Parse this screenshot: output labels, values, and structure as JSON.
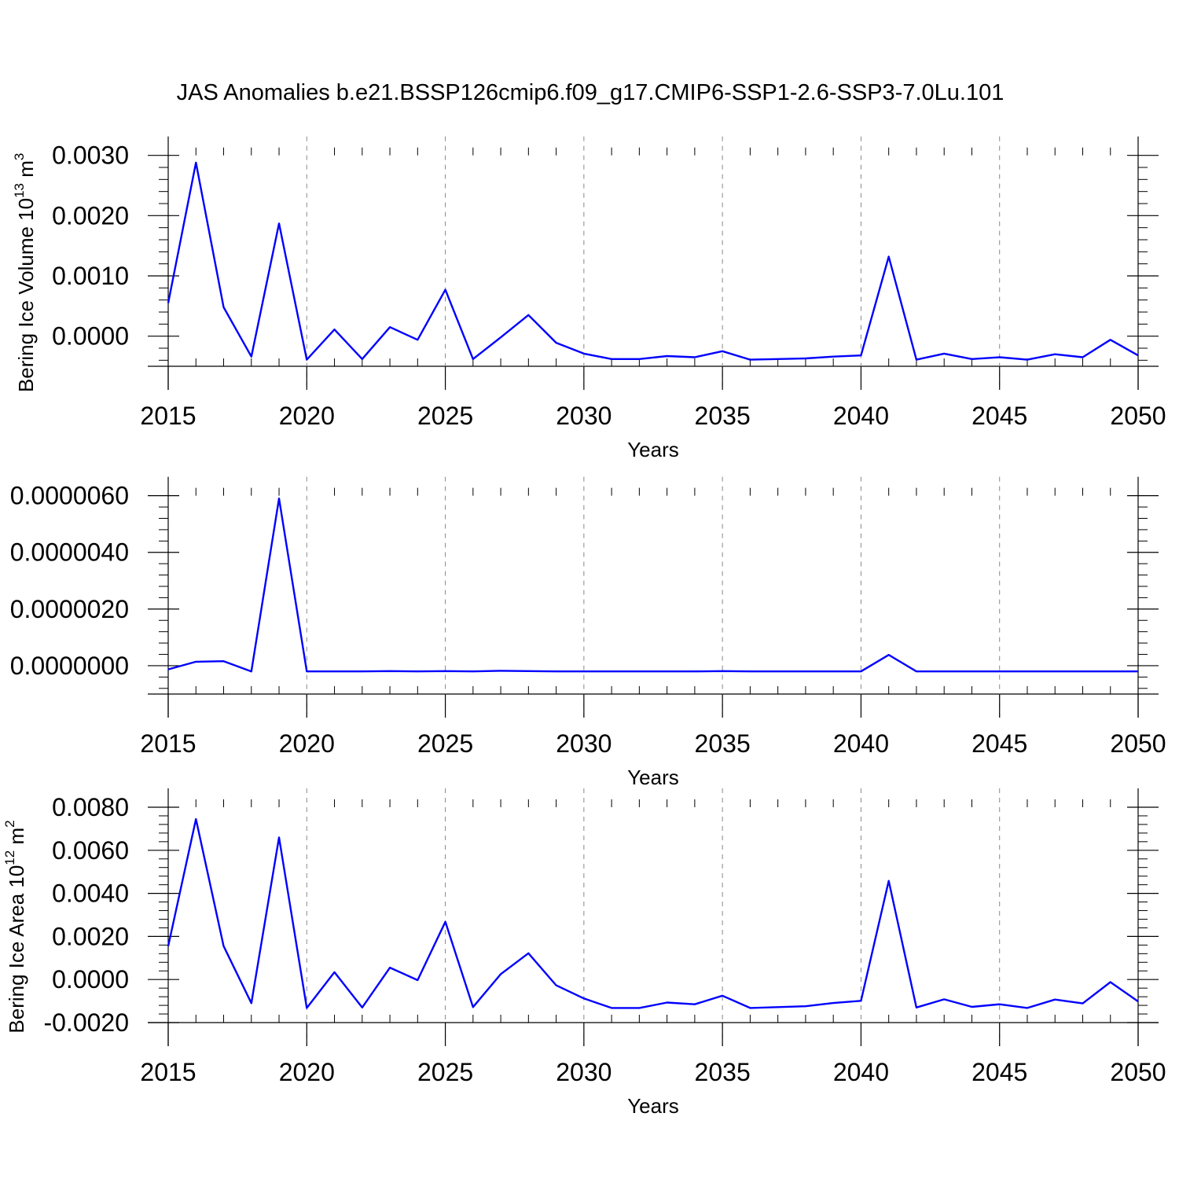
{
  "title": "JAS Anomalies b.e21.BSSP126cmip6.f09_g17.CMIP6-SSP1-2.6-SSP3-7.0Lu.101",
  "chart_data": [
    {
      "type": "line",
      "ylabel": {
        "base": "Bering Ice Volume 10",
        "exp": "13",
        "unit": " m",
        "unit_exp": "3"
      },
      "xlabel": "Years",
      "xlim": [
        2015,
        2050
      ],
      "ylim": [
        -0.0005,
        0.0031
      ],
      "yticks": [
        0.0,
        0.001,
        0.002,
        0.003
      ],
      "ytick_labels": [
        "0.0000",
        "0.0010",
        "0.0020",
        "0.0030"
      ],
      "xticks": [
        2015,
        2020,
        2025,
        2030,
        2035,
        2040,
        2045,
        2050
      ],
      "xtick_labels": [
        "2015",
        "2020",
        "2025",
        "2030",
        "2035",
        "2040",
        "2045",
        "2050"
      ],
      "grid": "dashed vertical at major x ticks",
      "color": "#0000ff",
      "x": [
        2015,
        2016,
        2017,
        2018,
        2019,
        2020,
        2021,
        2022,
        2023,
        2024,
        2025,
        2026,
        2027,
        2028,
        2029,
        2030,
        2031,
        2032,
        2033,
        2034,
        2035,
        2036,
        2037,
        2038,
        2039,
        2040,
        2041,
        2042,
        2043,
        2044,
        2045,
        2046,
        2047,
        2048,
        2049,
        2050
      ],
      "values": [
        0.00055,
        0.00288,
        0.00048,
        -0.00034,
        0.00187,
        -0.00039,
        0.00011,
        -0.00038,
        0.00015,
        -6e-05,
        0.00077,
        -0.00038,
        -2e-05,
        0.00035,
        -0.00011,
        -0.00029,
        -0.00038,
        -0.00038,
        -0.00033,
        -0.00035,
        -0.00025,
        -0.00039,
        -0.00038,
        -0.00037,
        -0.00034,
        -0.00032,
        0.00132,
        -0.00039,
        -0.00029,
        -0.00038,
        -0.00035,
        -0.00039,
        -0.0003,
        -0.00035,
        -6e-05,
        -0.00032
      ]
    },
    {
      "type": "line",
      "xlabel": "Years",
      "xlim": [
        2015,
        2050
      ],
      "ylim": [
        -1e-06,
        6.6e-06
      ],
      "yticks": [
        0.0,
        2e-06,
        4e-06,
        6e-06
      ],
      "ytick_labels": [
        "0.0000000",
        "0.0000020",
        "0.0000040",
        "0.0000060"
      ],
      "xticks": [
        2015,
        2020,
        2025,
        2030,
        2035,
        2040,
        2045,
        2050
      ],
      "xtick_labels": [
        "2015",
        "2020",
        "2025",
        "2030",
        "2035",
        "2040",
        "2045",
        "2050"
      ],
      "grid": "dashed vertical at major x ticks",
      "color": "#0000ff",
      "x": [
        2015,
        2016,
        2017,
        2018,
        2019,
        2020,
        2021,
        2022,
        2023,
        2024,
        2025,
        2026,
        2027,
        2028,
        2029,
        2030,
        2031,
        2032,
        2033,
        2034,
        2035,
        2036,
        2037,
        2038,
        2039,
        2040,
        2041,
        2042,
        2043,
        2044,
        2045,
        2046,
        2047,
        2048,
        2049,
        2050
      ],
      "values": [
        -1.3e-07,
        1.4e-07,
        1.6e-07,
        -2e-07,
        5.9e-06,
        -2e-07,
        -2e-07,
        -2e-07,
        -1.9e-07,
        -2e-07,
        -1.9e-07,
        -2e-07,
        -1.8e-07,
        -1.9e-07,
        -2e-07,
        -2e-07,
        -2e-07,
        -2e-07,
        -2e-07,
        -2e-07,
        -1.9e-07,
        -2e-07,
        -2e-07,
        -2e-07,
        -2e-07,
        -2e-07,
        3.8e-07,
        -2e-07,
        -2e-07,
        -2e-07,
        -2e-07,
        -2e-07,
        -2e-07,
        -2e-07,
        -2e-07,
        -2e-07
      ]
    },
    {
      "type": "line",
      "ylabel": {
        "base": "Bering Ice Area 10",
        "exp": "12",
        "unit": " m",
        "unit_exp": "2"
      },
      "xlabel": "Years",
      "xlim": [
        2015,
        2050
      ],
      "ylim": [
        -0.002,
        0.008
      ],
      "yticks": [
        -0.002,
        0.0,
        0.002,
        0.004,
        0.006,
        0.008
      ],
      "ytick_labels": [
        "-0.0020",
        "0.0000",
        "0.0020",
        "0.0040",
        "0.0060",
        "0.0080"
      ],
      "xticks": [
        2015,
        2020,
        2025,
        2030,
        2035,
        2040,
        2045,
        2050
      ],
      "xtick_labels": [
        "2015",
        "2020",
        "2025",
        "2030",
        "2035",
        "2040",
        "2045",
        "2050"
      ],
      "grid": "dashed vertical at major x ticks",
      "color": "#0000ff",
      "x": [
        2015,
        2016,
        2017,
        2018,
        2019,
        2020,
        2021,
        2022,
        2023,
        2024,
        2025,
        2026,
        2027,
        2028,
        2029,
        2030,
        2031,
        2032,
        2033,
        2034,
        2035,
        2036,
        2037,
        2038,
        2039,
        2040,
        2041,
        2042,
        2043,
        2044,
        2045,
        2046,
        2047,
        2048,
        2049,
        2050
      ],
      "values": [
        0.00155,
        0.00745,
        0.00155,
        -0.0011,
        0.0066,
        -0.00132,
        0.00034,
        -0.0013,
        0.00055,
        -3e-05,
        0.00268,
        -0.00128,
        0.00025,
        0.00122,
        -0.00027,
        -0.00088,
        -0.00132,
        -0.00132,
        -0.00107,
        -0.00115,
        -0.00075,
        -0.00132,
        -0.00128,
        -0.00124,
        -0.00109,
        -0.00099,
        0.00458,
        -0.0013,
        -0.00092,
        -0.00127,
        -0.00115,
        -0.00132,
        -0.00093,
        -0.00111,
        -0.00012,
        -0.00102
      ]
    }
  ]
}
